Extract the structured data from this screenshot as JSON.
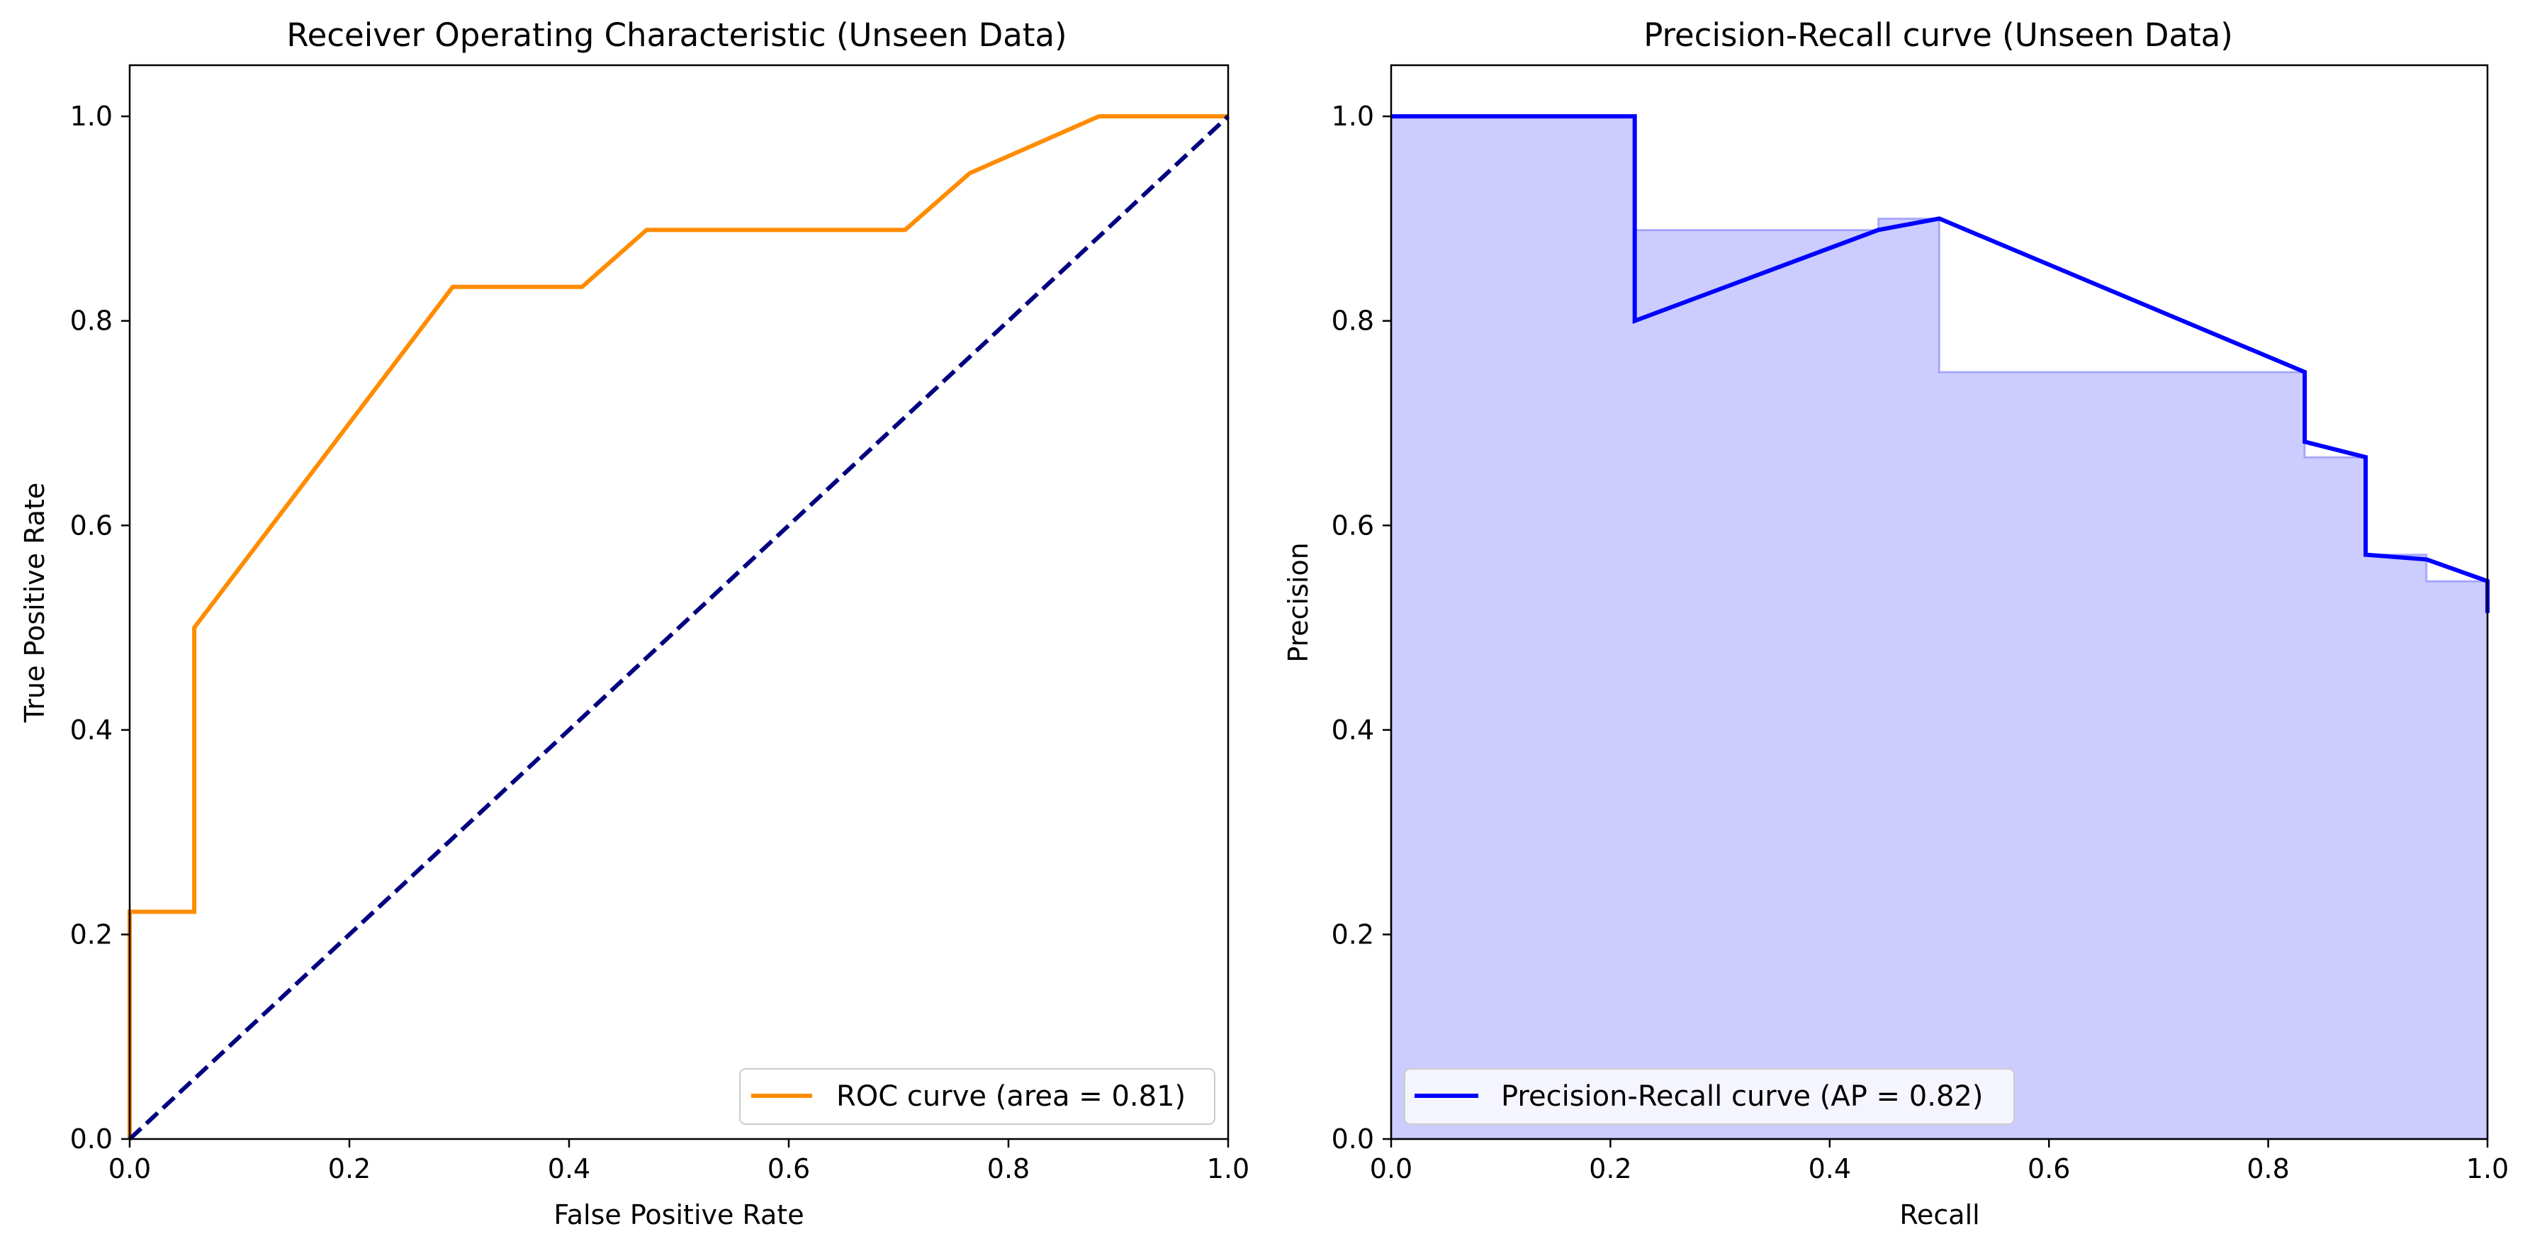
{
  "chart_data": [
    {
      "type": "line",
      "title": "Receiver Operating Characteristic (Unseen Data)",
      "xlabel": "False Positive Rate",
      "ylabel": "True Positive Rate",
      "xlim": [
        0,
        1
      ],
      "ylim": [
        0,
        1.05
      ],
      "xticks": [
        "0.0",
        "0.2",
        "0.4",
        "0.6",
        "0.8",
        "1.0"
      ],
      "yticks": [
        "0.0",
        "0.2",
        "0.4",
        "0.6",
        "0.8",
        "1.0"
      ],
      "grid": false,
      "legend_position": "lower-right",
      "series": [
        {
          "name": "ROC curve (area = 0.81)",
          "color": "#ff8c00",
          "style": "solid",
          "x": [
            0.0,
            0.0,
            0.0588,
            0.0588,
            0.2941,
            0.4118,
            0.4706,
            0.7059,
            0.7647,
            0.8824,
            1.0
          ],
          "y": [
            0.0,
            0.2222,
            0.2222,
            0.5,
            0.8333,
            0.8333,
            0.8889,
            0.8889,
            0.9444,
            1.0,
            1.0
          ]
        },
        {
          "name": "",
          "color": "#000080",
          "style": "dashed",
          "x": [
            0,
            1
          ],
          "y": [
            0,
            1
          ]
        }
      ]
    },
    {
      "type": "area",
      "title": "Precision-Recall curve (Unseen Data)",
      "xlabel": "Recall",
      "ylabel": "Precision",
      "xlim": [
        0,
        1
      ],
      "ylim": [
        0,
        1.05
      ],
      "xticks": [
        "0.0",
        "0.2",
        "0.4",
        "0.6",
        "0.8",
        "1.0"
      ],
      "yticks": [
        "0.0",
        "0.2",
        "0.4",
        "0.6",
        "0.8",
        "1.0"
      ],
      "grid": false,
      "legend_position": "lower-left",
      "series": [
        {
          "name": "Precision-Recall curve (AP = 0.82)",
          "color": "#0000ff",
          "style": "solid",
          "x": [
            0.0,
            0.2222,
            0.2222,
            0.4444,
            0.5,
            0.8333,
            0.8333,
            0.8889,
            0.8889,
            0.9444,
            1.0,
            1.0
          ],
          "y": [
            1.0,
            1.0,
            0.8,
            0.8889,
            0.9,
            0.75,
            0.6818,
            0.6667,
            0.5714,
            0.5667,
            0.5455,
            0.5143
          ]
        }
      ],
      "fill": {
        "color": "#0000ff",
        "opacity": 0.2,
        "step": "post",
        "x": [
          0.0,
          0.2222,
          0.4444,
          0.5,
          0.8333,
          0.8889,
          0.9444,
          1.0
        ],
        "y": [
          1.0,
          0.8889,
          0.9,
          0.75,
          0.6667,
          0.5714,
          0.5455,
          0.5143
        ]
      }
    }
  ]
}
